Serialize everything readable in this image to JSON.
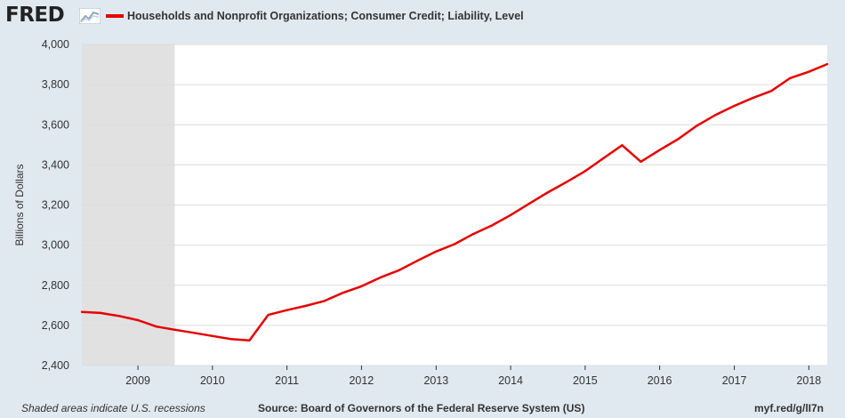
{
  "header": {
    "logo_text": "FRED",
    "logo_icon": "line-chart-icon"
  },
  "colors": {
    "series": "#e60000",
    "background": "#e1e9f0",
    "plot": "#ffffff",
    "recession": "#e1e1e1",
    "grid": "#dddddd"
  },
  "chart_data": {
    "type": "line",
    "title": "",
    "xlabel": "",
    "ylabel": "Billions of Dollars",
    "ylim": [
      2400,
      4000
    ],
    "yticks": [
      {
        "value": 2400,
        "label": "2,400"
      },
      {
        "value": 2600,
        "label": "2,600"
      },
      {
        "value": 2800,
        "label": "2,800"
      },
      {
        "value": 3000,
        "label": "3,000"
      },
      {
        "value": 3200,
        "label": "3,200"
      },
      {
        "value": 3400,
        "label": "3,400"
      },
      {
        "value": 3600,
        "label": "3,600"
      },
      {
        "value": 3800,
        "label": "3,800"
      },
      {
        "value": 4000,
        "label": "4,000"
      }
    ],
    "xticks": [
      "2009",
      "2010",
      "2011",
      "2012",
      "2013",
      "2014",
      "2015",
      "2016",
      "2017",
      "2018"
    ],
    "xlim": [
      "2008-04-01",
      "2018-04-01"
    ],
    "grid": true,
    "recessions": [
      [
        "2008-04-01",
        "2009-06-30"
      ]
    ],
    "series": [
      {
        "name": "Households and Nonprofit Organizations; Consumer Credit; Liability, Level",
        "color": "#e60000",
        "points": [
          [
            "2008-04-01",
            2667
          ],
          [
            "2008-07-01",
            2662
          ],
          [
            "2008-10-01",
            2647
          ],
          [
            "2009-01-01",
            2626
          ],
          [
            "2009-04-01",
            2594
          ],
          [
            "2009-07-01",
            2578
          ],
          [
            "2009-10-01",
            2563
          ],
          [
            "2010-01-01",
            2547
          ],
          [
            "2010-04-01",
            2532
          ],
          [
            "2010-07-01",
            2525
          ],
          [
            "2010-10-01",
            2652
          ],
          [
            "2011-01-01",
            2676
          ],
          [
            "2011-04-01",
            2697
          ],
          [
            "2011-07-01",
            2721
          ],
          [
            "2011-10-01",
            2762
          ],
          [
            "2012-01-01",
            2795
          ],
          [
            "2012-04-01",
            2838
          ],
          [
            "2012-07-01",
            2874
          ],
          [
            "2012-10-01",
            2922
          ],
          [
            "2013-01-01",
            2968
          ],
          [
            "2013-04-01",
            3005
          ],
          [
            "2013-07-01",
            3055
          ],
          [
            "2013-10-01",
            3098
          ],
          [
            "2014-01-01",
            3150
          ],
          [
            "2014-04-01",
            3206
          ],
          [
            "2014-07-01",
            3262
          ],
          [
            "2014-10-01",
            3314
          ],
          [
            "2015-01-01",
            3369
          ],
          [
            "2015-04-01",
            3433
          ],
          [
            "2015-07-01",
            3498
          ],
          [
            "2015-10-01",
            3416
          ],
          [
            "2016-01-01",
            3474
          ],
          [
            "2016-04-01",
            3529
          ],
          [
            "2016-07-01",
            3595
          ],
          [
            "2016-10-01",
            3649
          ],
          [
            "2017-01-01",
            3694
          ],
          [
            "2017-04-01",
            3733
          ],
          [
            "2017-07-01",
            3768
          ],
          [
            "2017-10-01",
            3832
          ],
          [
            "2018-01-01",
            3864
          ],
          [
            "2018-04-01",
            3902
          ]
        ]
      }
    ]
  },
  "footer": {
    "recession_note": "Shaded areas indicate U.S. recessions",
    "source": "Source: Board of Governors of the Federal Reserve System (US)",
    "url": "myf.red/g/lI7n"
  }
}
